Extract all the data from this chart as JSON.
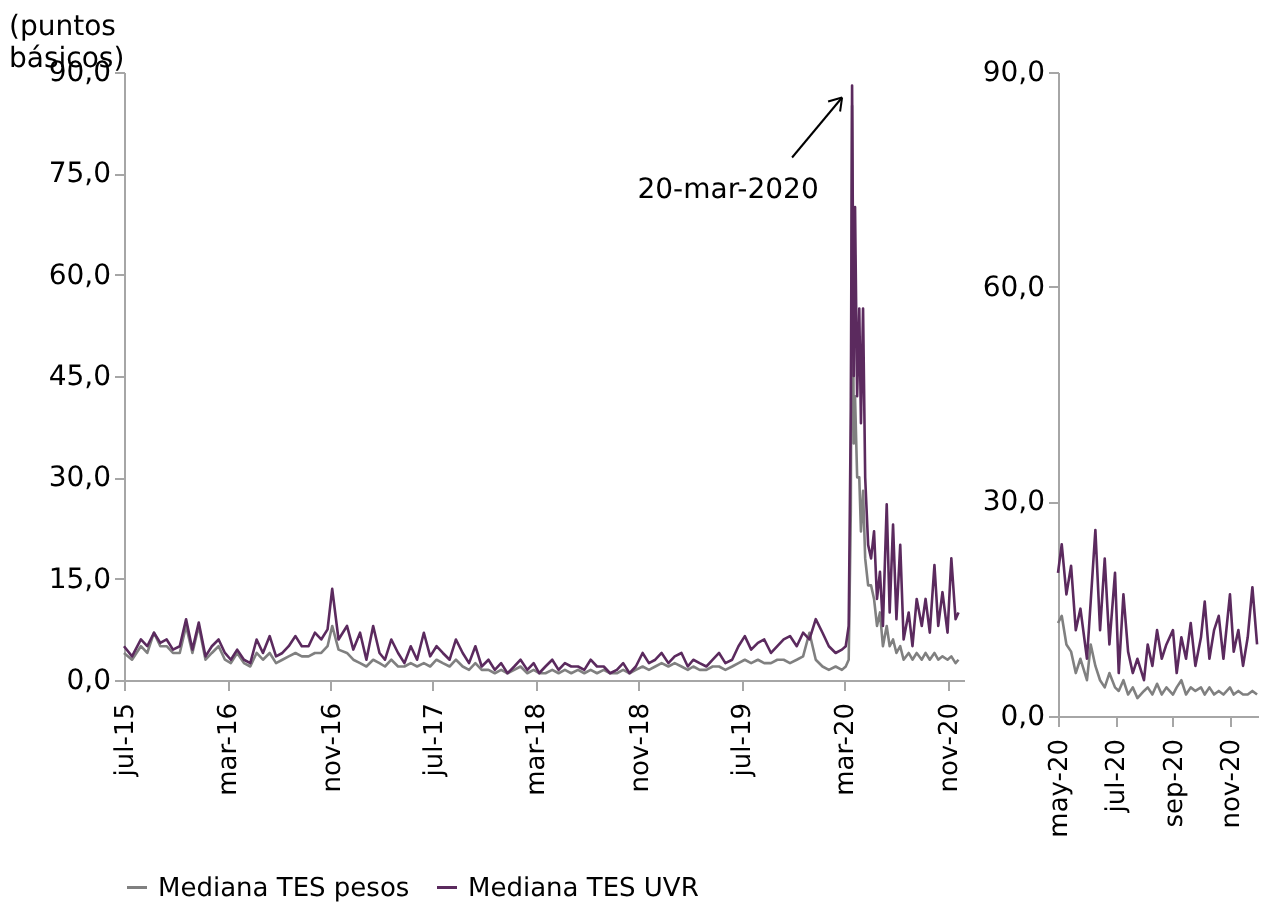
{
  "chart_data": [
    {
      "type": "line",
      "ylabel": "(puntos básicos)",
      "x": [
        "2015-07-01",
        "2015-07-20",
        "2015-08-10",
        "2015-08-25",
        "2015-09-10",
        "2015-09-25",
        "2015-10-10",
        "2015-10-25",
        "2015-11-10",
        "2015-11-25",
        "2015-12-10",
        "2015-12-25",
        "2016-01-10",
        "2016-01-25",
        "2016-02-10",
        "2016-02-25",
        "2016-03-10",
        "2016-03-25",
        "2016-04-10",
        "2016-04-25",
        "2016-05-10",
        "2016-05-25",
        "2016-06-10",
        "2016-06-25",
        "2016-07-10",
        "2016-07-25",
        "2016-08-10",
        "2016-08-25",
        "2016-09-10",
        "2016-09-25",
        "2016-10-10",
        "2016-10-25",
        "2016-11-05",
        "2016-11-20",
        "2016-12-10",
        "2016-12-25",
        "2017-01-10",
        "2017-01-25",
        "2017-02-10",
        "2017-02-25",
        "2017-03-10",
        "2017-03-25",
        "2017-04-10",
        "2017-04-25",
        "2017-05-10",
        "2017-05-25",
        "2017-06-10",
        "2017-06-25",
        "2017-07-10",
        "2017-07-25",
        "2017-08-10",
        "2017-08-25",
        "2017-09-10",
        "2017-09-25",
        "2017-10-10",
        "2017-10-25",
        "2017-11-10",
        "2017-11-25",
        "2017-12-10",
        "2017-12-25",
        "2018-01-10",
        "2018-01-25",
        "2018-02-10",
        "2018-02-25",
        "2018-03-10",
        "2018-03-25",
        "2018-04-10",
        "2018-04-25",
        "2018-05-10",
        "2018-05-25",
        "2018-06-10",
        "2018-06-25",
        "2018-07-10",
        "2018-07-25",
        "2018-08-10",
        "2018-08-25",
        "2018-09-10",
        "2018-09-25",
        "2018-10-10",
        "2018-10-25",
        "2018-11-10",
        "2018-11-25",
        "2018-12-10",
        "2018-12-25",
        "2019-01-10",
        "2019-01-25",
        "2019-02-10",
        "2019-02-25",
        "2019-03-10",
        "2019-03-25",
        "2019-04-10",
        "2019-04-25",
        "2019-05-10",
        "2019-05-25",
        "2019-06-10",
        "2019-06-25",
        "2019-07-10",
        "2019-07-25",
        "2019-08-10",
        "2019-08-25",
        "2019-09-10",
        "2019-09-25",
        "2019-10-10",
        "2019-10-25",
        "2019-11-10",
        "2019-11-25",
        "2019-12-10",
        "2019-12-25",
        "2020-01-10",
        "2020-01-25",
        "2020-02-10",
        "2020-02-25",
        "2020-03-05",
        "2020-03-12",
        "2020-03-17",
        "2020-03-20",
        "2020-03-24",
        "2020-03-27",
        "2020-04-01",
        "2020-04-06",
        "2020-04-10",
        "2020-04-15",
        "2020-04-20",
        "2020-04-27",
        "2020-05-04",
        "2020-05-11",
        "2020-05-18",
        "2020-05-25",
        "2020-06-01",
        "2020-06-10",
        "2020-06-17",
        "2020-06-25",
        "2020-07-03",
        "2020-07-12",
        "2020-07-20",
        "2020-08-01",
        "2020-08-10",
        "2020-08-20",
        "2020-09-01",
        "2020-09-10",
        "2020-09-20",
        "2020-10-01",
        "2020-10-10",
        "2020-10-20",
        "2020-11-01",
        "2020-11-10",
        "2020-11-20",
        "2020-11-27"
      ],
      "series": [
        {
          "name": "Mediana TES pesos",
          "color": "#808080",
          "values": [
            4,
            3,
            5,
            4,
            7,
            5,
            5,
            4,
            4,
            8,
            4,
            8,
            3,
            4,
            5,
            3,
            2.5,
            4,
            2.5,
            2,
            4,
            3,
            4,
            2.5,
            3,
            3.5,
            4,
            3.5,
            3.5,
            4,
            4,
            5,
            8,
            4.5,
            4,
            3,
            2.5,
            2,
            3,
            2.5,
            2,
            3,
            2,
            2,
            2.5,
            2,
            2.5,
            2,
            3,
            2.5,
            2,
            3,
            2,
            1.5,
            2.5,
            1.5,
            1.5,
            1,
            1.5,
            1,
            1.5,
            2,
            1,
            1.5,
            1,
            1,
            1.5,
            1,
            1.5,
            1,
            1.5,
            1,
            1.5,
            1,
            1.5,
            1,
            1,
            1.5,
            1,
            1.5,
            2,
            1.5,
            2,
            2.5,
            2,
            2.5,
            2,
            1.5,
            2,
            1.5,
            1.5,
            2,
            2,
            1.5,
            2,
            2.5,
            3,
            2.5,
            3,
            2.5,
            2.5,
            3,
            3,
            2.5,
            3,
            3.5,
            7,
            3,
            2,
            1.5,
            2,
            1.5,
            2,
            3,
            25,
            85,
            35,
            42,
            30,
            30,
            22,
            28,
            18,
            14,
            14,
            12,
            8,
            10,
            5,
            8,
            5,
            6,
            4,
            5,
            3,
            4,
            3,
            4,
            3,
            4,
            3,
            4,
            3,
            3.5,
            3,
            3.5,
            2.5,
            3
          ]
        },
        {
          "name": "Mediana TES UVR",
          "color": "#5b2a5e",
          "values": [
            5,
            3.5,
            6,
            5,
            7,
            5.5,
            6,
            4.5,
            5,
            9,
            4.5,
            8.5,
            3.5,
            5,
            6,
            4,
            3,
            4.5,
            3,
            2.5,
            6,
            4,
            6.5,
            3.5,
            4,
            5,
            6.5,
            5,
            5,
            7,
            6,
            7.5,
            13.5,
            6,
            8,
            4.5,
            7,
            3,
            8,
            4,
            3,
            6,
            4,
            2.5,
            5,
            3,
            7,
            3.5,
            5,
            4,
            3,
            6,
            4,
            2.5,
            5,
            2,
            3,
            1.5,
            2.5,
            1,
            2,
            3,
            1.5,
            2.5,
            1,
            2,
            3,
            1.5,
            2.5,
            2,
            2,
            1.5,
            3,
            2,
            2,
            1,
            1.5,
            2.5,
            1,
            2,
            4,
            2.5,
            3,
            4,
            2.5,
            3.5,
            4,
            2,
            3,
            2.5,
            2,
            3,
            4,
            2.5,
            3,
            5,
            6.5,
            4.5,
            5.5,
            6,
            4,
            5,
            6,
            6.5,
            5,
            7,
            6,
            9,
            7,
            5,
            4,
            4.5,
            5,
            8,
            40,
            88,
            45,
            70,
            42,
            55,
            38,
            55,
            30,
            20,
            18,
            22,
            12,
            16,
            8,
            26,
            10,
            23,
            9,
            20,
            6,
            10,
            5,
            12,
            8,
            12,
            7,
            17,
            8,
            13,
            7,
            18,
            9,
            10
          ]
        }
      ],
      "xlim": [
        "2015-07-01",
        "2020-12-10"
      ],
      "xticks": [
        {
          "value": "2015-07-01",
          "label": "jul-15"
        },
        {
          "value": "2016-03-01",
          "label": "mar-16"
        },
        {
          "value": "2016-11-01",
          "label": "nov-16"
        },
        {
          "value": "2017-07-01",
          "label": "jul-17"
        },
        {
          "value": "2018-03-01",
          "label": "mar-18"
        },
        {
          "value": "2018-11-01",
          "label": "nov-18"
        },
        {
          "value": "2019-07-01",
          "label": "jul-19"
        },
        {
          "value": "2020-03-01",
          "label": "mar-20"
        },
        {
          "value": "2020-11-01",
          "label": "nov-20"
        }
      ],
      "ylim": [
        0,
        90
      ],
      "yticks": [
        {
          "value": 0,
          "label": "0,0"
        },
        {
          "value": 15,
          "label": "15,0"
        },
        {
          "value": 30,
          "label": "30,0"
        },
        {
          "value": 45,
          "label": "45,0"
        },
        {
          "value": 60,
          "label": "60,0"
        },
        {
          "value": 75,
          "label": "75,0"
        },
        {
          "value": 90,
          "label": "90,0"
        }
      ],
      "annotations": [
        {
          "text": "20-mar-2020",
          "x": "2020-03-20",
          "y": 88
        }
      ],
      "legend": "bottom",
      "grid": false,
      "marker": "none",
      "line_style": "solid"
    },
    {
      "type": "line",
      "x": [
        "2020-05-01",
        "2020-05-05",
        "2020-05-10",
        "2020-05-15",
        "2020-05-20",
        "2020-05-25",
        "2020-06-01",
        "2020-06-05",
        "2020-06-10",
        "2020-06-15",
        "2020-06-20",
        "2020-06-25",
        "2020-07-01",
        "2020-07-05",
        "2020-07-10",
        "2020-07-15",
        "2020-07-20",
        "2020-07-25",
        "2020-08-01",
        "2020-08-05",
        "2020-08-10",
        "2020-08-15",
        "2020-08-20",
        "2020-08-25",
        "2020-09-01",
        "2020-09-05",
        "2020-09-10",
        "2020-09-15",
        "2020-09-20",
        "2020-09-25",
        "2020-10-01",
        "2020-10-05",
        "2020-10-10",
        "2020-10-15",
        "2020-10-20",
        "2020-10-25",
        "2020-11-01",
        "2020-11-05",
        "2020-11-10",
        "2020-11-15",
        "2020-11-20",
        "2020-11-25",
        "2020-11-30"
      ],
      "series": [
        {
          "name": "Mediana TES pesos",
          "color": "#808080",
          "values": [
            13,
            14,
            10,
            9,
            6,
            8,
            5,
            10,
            7,
            5,
            4,
            6,
            4,
            3.5,
            5,
            3,
            4,
            2.5,
            3.5,
            4,
            3,
            4.5,
            3,
            4,
            3,
            4,
            5,
            3,
            4,
            3.5,
            4,
            3,
            4,
            3,
            3.5,
            3,
            4,
            3,
            3.5,
            3,
            3,
            3.5,
            3
          ]
        },
        {
          "name": "Mediana TES UVR",
          "color": "#5b2a5e",
          "values": [
            20,
            24,
            17,
            21,
            12,
            15,
            8,
            16,
            26,
            12,
            22,
            10,
            20,
            6,
            17,
            9,
            6,
            8,
            5,
            10,
            7,
            12,
            8,
            10,
            12,
            6,
            11,
            8,
            13,
            7,
            11,
            16,
            8,
            12,
            14,
            8,
            17,
            9,
            12,
            7,
            11,
            18,
            10
          ]
        }
      ],
      "xlim": [
        "2020-05-01",
        "2020-12-01"
      ],
      "xticks": [
        {
          "value": "2020-05-01",
          "label": "may-20"
        },
        {
          "value": "2020-07-01",
          "label": "jul-20"
        },
        {
          "value": "2020-09-01",
          "label": "sep-20"
        },
        {
          "value": "2020-11-01",
          "label": "nov-20"
        }
      ],
      "ylim": [
        0,
        90
      ],
      "yticks": [
        {
          "value": 0,
          "label": "0,0"
        },
        {
          "value": 30,
          "label": "30,0"
        },
        {
          "value": 60,
          "label": "60,0"
        },
        {
          "value": 90,
          "label": "90,0"
        }
      ],
      "legend": "bottom",
      "grid": false,
      "marker": "none",
      "line_style": "solid"
    }
  ]
}
